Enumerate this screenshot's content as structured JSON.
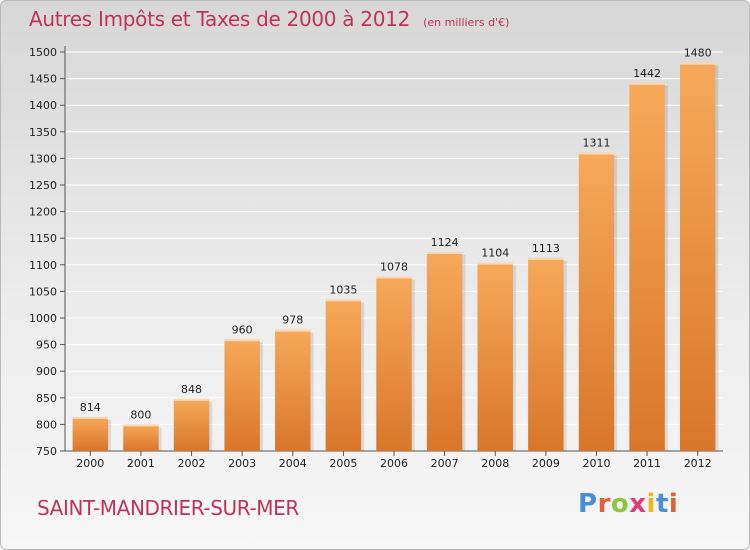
{
  "title": "Autres Impôts et Taxes de 2000 à 2012",
  "subtitle": "(en milliers d'€)",
  "city": "SAINT-MANDRIER-SUR-MER",
  "logo": {
    "text": "Proxiti",
    "letter_colors": [
      "#4a8fd6",
      "#e0603a",
      "#8dc63f",
      "#e03c78",
      "#f2b51c",
      "#4a8fd6",
      "#e0603a"
    ]
  },
  "colors": {
    "bar_light": "#f7a95a",
    "bar_dark": "#d9762a",
    "axis": "#555555",
    "grid": "#ffffff",
    "text": "#222222",
    "accent": "#c0335b"
  },
  "chart_data": {
    "type": "bar",
    "title": "Autres Impôts et Taxes de 2000 à 2012",
    "subtitle": "(en milliers d'€)",
    "categories": [
      "2000",
      "2001",
      "2002",
      "2003",
      "2004",
      "2005",
      "2006",
      "2007",
      "2008",
      "2009",
      "2010",
      "2011",
      "2012"
    ],
    "values": [
      814,
      800,
      848,
      960,
      978,
      1035,
      1078,
      1124,
      1104,
      1113,
      1311,
      1442,
      1480
    ],
    "ylim": [
      750,
      1500
    ],
    "yticks": [
      750,
      800,
      850,
      900,
      950,
      1000,
      1050,
      1100,
      1150,
      1200,
      1250,
      1300,
      1350,
      1400,
      1450,
      1500
    ],
    "grid": true,
    "data_labels": true
  }
}
